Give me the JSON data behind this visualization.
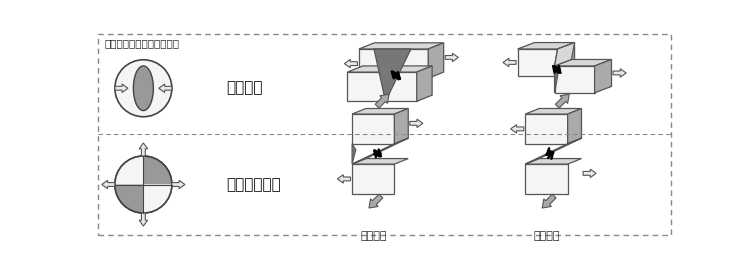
{
  "title": "圧力軸に注目した場合の例",
  "label_gyaku": "逆断層型",
  "label_yoko": "横ずれ断層型",
  "label_left": "左横ずれ",
  "label_right": "右横ずれ",
  "bg_color": "#ffffff",
  "gray_light": "#d8d8d8",
  "gray_mid": "#aaaaaa",
  "gray_dark": "#777777",
  "edge_color": "#555555"
}
